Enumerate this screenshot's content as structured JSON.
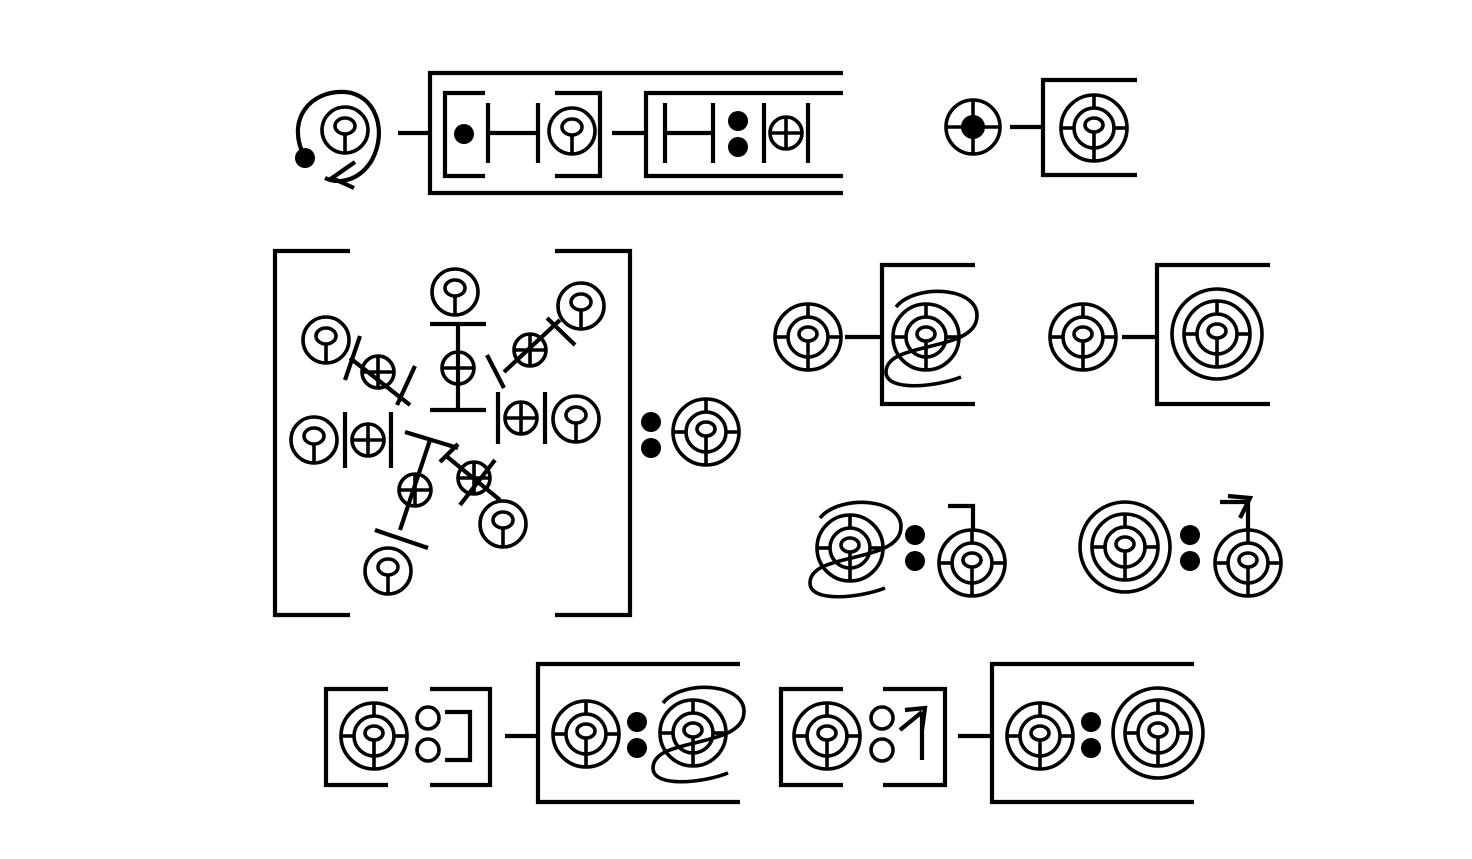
{
  "diagram": {
    "kind": "symbolic-glyph-notation",
    "background": "#ffffff",
    "ink": "#000000",
    "rows": 3,
    "glyph_types": [
      "spiral-seed",
      "y-circle",
      "crossed-circle",
      "target-circle",
      "double-ring-target",
      "loop-target",
      "dot-pair",
      "bracket",
      "arrow-stem"
    ]
  }
}
